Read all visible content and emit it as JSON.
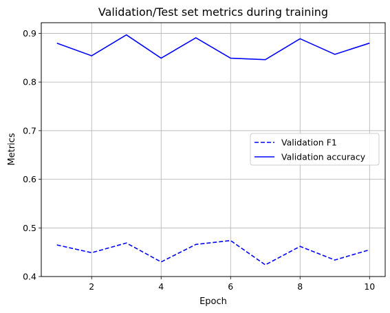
{
  "chart_data": {
    "type": "line",
    "title": "Validation/Test set metrics during training",
    "xlabel": "Epoch",
    "ylabel": "Metrics",
    "x": [
      1,
      2,
      3,
      4,
      5,
      6,
      7,
      8,
      9,
      10
    ],
    "xlim": [
      0.55,
      10.45
    ],
    "ylim": [
      0.4,
      0.922
    ],
    "xticks": [
      2,
      4,
      6,
      8,
      10
    ],
    "yticks": [
      0.4,
      0.5,
      0.6,
      0.7,
      0.8,
      0.9
    ],
    "xtick_labels": [
      "2",
      "4",
      "6",
      "8",
      "10"
    ],
    "ytick_labels": [
      "0.4",
      "0.5",
      "0.6",
      "0.7",
      "0.8",
      "0.9"
    ],
    "grid": true,
    "legend_position": "center-right",
    "series": [
      {
        "name": "Validation F1",
        "color": "#0000ff",
        "style": "dashed",
        "values": [
          0.465,
          0.449,
          0.469,
          0.43,
          0.466,
          0.474,
          0.424,
          0.462,
          0.434,
          0.455
        ]
      },
      {
        "name": "Validation accuracy",
        "color": "#0000ff",
        "style": "solid",
        "values": [
          0.88,
          0.854,
          0.897,
          0.849,
          0.891,
          0.849,
          0.846,
          0.889,
          0.857,
          0.88
        ]
      }
    ]
  }
}
